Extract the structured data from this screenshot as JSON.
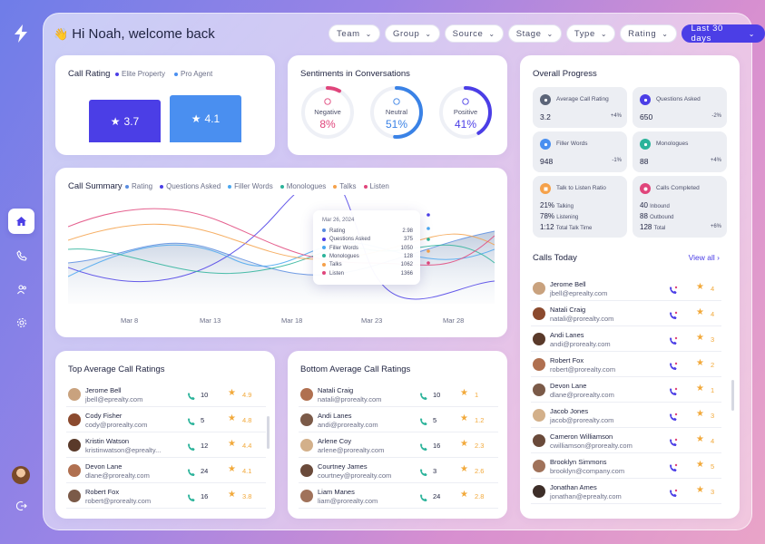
{
  "greeting": {
    "emoji": "👋",
    "text": "Hi Noah, welcome back"
  },
  "filters": [
    "Team",
    "Group",
    "Source",
    "Stage",
    "Type",
    "Rating"
  ],
  "date_range": "Last 30 days",
  "call_rating": {
    "title": "Call Rating",
    "legend": [
      {
        "label": "Elite Property",
        "color": "#4b3ee6"
      },
      {
        "label": "Pro Agent",
        "color": "#4a8ff0"
      }
    ],
    "bars": [
      {
        "value": "3.7",
        "color": "#4b3ee6"
      },
      {
        "value": "4.1",
        "color": "#4a8ff0"
      }
    ]
  },
  "sentiments": {
    "title": "Sentiments in Conversations",
    "items": [
      {
        "label": "Negative",
        "value": "8%",
        "fraction": 0.08,
        "color": "#e0457b"
      },
      {
        "label": "Neutral",
        "value": "51%",
        "fraction": 0.51,
        "color": "#3a82e6"
      },
      {
        "label": "Positive",
        "value": "41%",
        "fraction": 0.41,
        "color": "#4b3ee6"
      }
    ]
  },
  "call_summary": {
    "title": "Call Summary",
    "legend": [
      {
        "label": "Rating",
        "color": "#5a8de0"
      },
      {
        "label": "Questions Asked",
        "color": "#4b3ee6"
      },
      {
        "label": "Filler Words",
        "color": "#4aa7f0"
      },
      {
        "label": "Monologues",
        "color": "#2bb39a"
      },
      {
        "label": "Talks",
        "color": "#f5a14a"
      },
      {
        "label": "Listen",
        "color": "#e0457b"
      }
    ],
    "x_labels": [
      "Mar 8",
      "Mar 13",
      "Mar 18",
      "Mar 23",
      "Mar 28"
    ],
    "tooltip": {
      "date": "Mar 26, 2024",
      "rows": [
        {
          "label": "Rating",
          "value": "2.98",
          "color": "#5a8de0"
        },
        {
          "label": "Questions Asked",
          "value": "375",
          "color": "#4b3ee6"
        },
        {
          "label": "Filler Words",
          "value": "1050",
          "color": "#4aa7f0"
        },
        {
          "label": "Monologues",
          "value": "128",
          "color": "#2bb39a"
        },
        {
          "label": "Talks",
          "value": "1062",
          "color": "#f5a14a"
        },
        {
          "label": "Listen",
          "value": "1366",
          "color": "#e0457b"
        }
      ]
    }
  },
  "overall_progress": {
    "title": "Overall Progress",
    "stats": [
      {
        "label": "Average Call Rating",
        "value": "3.2",
        "delta": "+4%",
        "icon": "star-icon",
        "color": "#5b6478"
      },
      {
        "label": "Questions Asked",
        "value": "650",
        "delta": "-2%",
        "icon": "question-icon",
        "color": "#4b3ee6"
      },
      {
        "label": "Filler Words",
        "value": "948",
        "delta": "-1%",
        "icon": "chat-icon",
        "color": "#4a8ff0"
      },
      {
        "label": "Monologues",
        "value": "88",
        "delta": "+4%",
        "icon": "people-icon",
        "color": "#2bb39a"
      }
    ],
    "talk_ratio": {
      "label": "Talk to Listen Ratio",
      "lines": [
        {
          "v": "21%",
          "t": "Talking"
        },
        {
          "v": "78%",
          "t": "Listening"
        },
        {
          "v": "1:12",
          "t": "Total Talk Time"
        }
      ],
      "color": "#f5a14a"
    },
    "completed": {
      "label": "Calls Completed",
      "lines": [
        {
          "v": "40",
          "t": "Inbound"
        },
        {
          "v": "88",
          "t": "Outbound"
        },
        {
          "v": "128",
          "t": "Total"
        }
      ],
      "delta": "+6%",
      "color": "#e0457b"
    }
  },
  "calls_today": {
    "title": "Calls Today",
    "view_all": "View all",
    "rows": [
      {
        "name": "Jerome Bell",
        "email": "jbell@eprealty.com",
        "rating": "4"
      },
      {
        "name": "Natali Craig",
        "email": "natali@prorealty.com",
        "rating": "4"
      },
      {
        "name": "Andi Lanes",
        "email": "andi@prorealty.com",
        "rating": "3"
      },
      {
        "name": "Robert Fox",
        "email": "robert@prorealty.com",
        "rating": "2"
      },
      {
        "name": "Devon Lane",
        "email": "dlane@prorealty.com",
        "rating": "1"
      },
      {
        "name": "Jacob Jones",
        "email": "jacob@prorealty.com",
        "rating": "3"
      },
      {
        "name": "Cameron Williamson",
        "email": "cwilliamson@prorealty.com",
        "rating": "4"
      },
      {
        "name": "Brooklyn Simmons",
        "email": "brooklyn@company.com",
        "rating": "5"
      },
      {
        "name": "Jonathan Ames",
        "email": "jonathan@eprealty.com",
        "rating": "3"
      }
    ]
  },
  "top_ratings": {
    "title": "Top Average Call Ratings",
    "rows": [
      {
        "name": "Jerome Bell",
        "email": "jbell@eprealty.com",
        "calls": "10",
        "rating": "4.9"
      },
      {
        "name": "Cody Fisher",
        "email": "cody@prorealty.com",
        "calls": "5",
        "rating": "4.8"
      },
      {
        "name": "Kristin Watson",
        "email": "kristinwatson@eprealty...",
        "calls": "12",
        "rating": "4.4"
      },
      {
        "name": "Devon Lane",
        "email": "dlane@prorealty.com",
        "calls": "24",
        "rating": "4.1"
      },
      {
        "name": "Robert Fox",
        "email": "robert@prorealty.com",
        "calls": "16",
        "rating": "3.8"
      }
    ]
  },
  "bottom_ratings": {
    "title": "Bottom Average Call Ratings",
    "rows": [
      {
        "name": "Natali Craig",
        "email": "natali@prorealty.com",
        "calls": "10",
        "rating": "1"
      },
      {
        "name": "Andi Lanes",
        "email": "andi@prorealty.com",
        "calls": "5",
        "rating": "1.2"
      },
      {
        "name": "Arlene Coy",
        "email": "arlene@prorealty.com",
        "calls": "16",
        "rating": "2.3"
      },
      {
        "name": "Courtney James",
        "email": "courtney@prorealty.com",
        "calls": "3",
        "rating": "2.6"
      },
      {
        "name": "Liam Manes",
        "email": "liam@prorealty.com",
        "calls": "24",
        "rating": "2.8"
      }
    ]
  }
}
